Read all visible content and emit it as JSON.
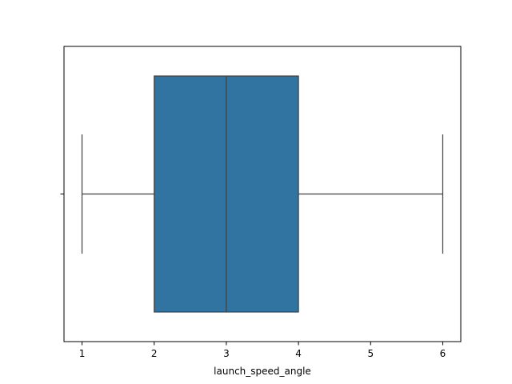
{
  "chart_data": {
    "type": "box",
    "orientation": "horizontal",
    "xlabel": "launch_speed_angle",
    "ylabel": "",
    "xlim": [
      0.75,
      6.25
    ],
    "x_ticks": [
      1,
      2,
      3,
      4,
      5,
      6
    ],
    "x_tick_labels": [
      "1",
      "2",
      "3",
      "4",
      "5",
      "6"
    ],
    "grid": false,
    "box": {
      "whisker_low": 1,
      "q1": 2,
      "median": 3,
      "q3": 4,
      "whisker_high": 6
    },
    "colors": {
      "box_fill": "#3274a1",
      "line": "#3f3f3f",
      "axes": "#000000"
    }
  }
}
